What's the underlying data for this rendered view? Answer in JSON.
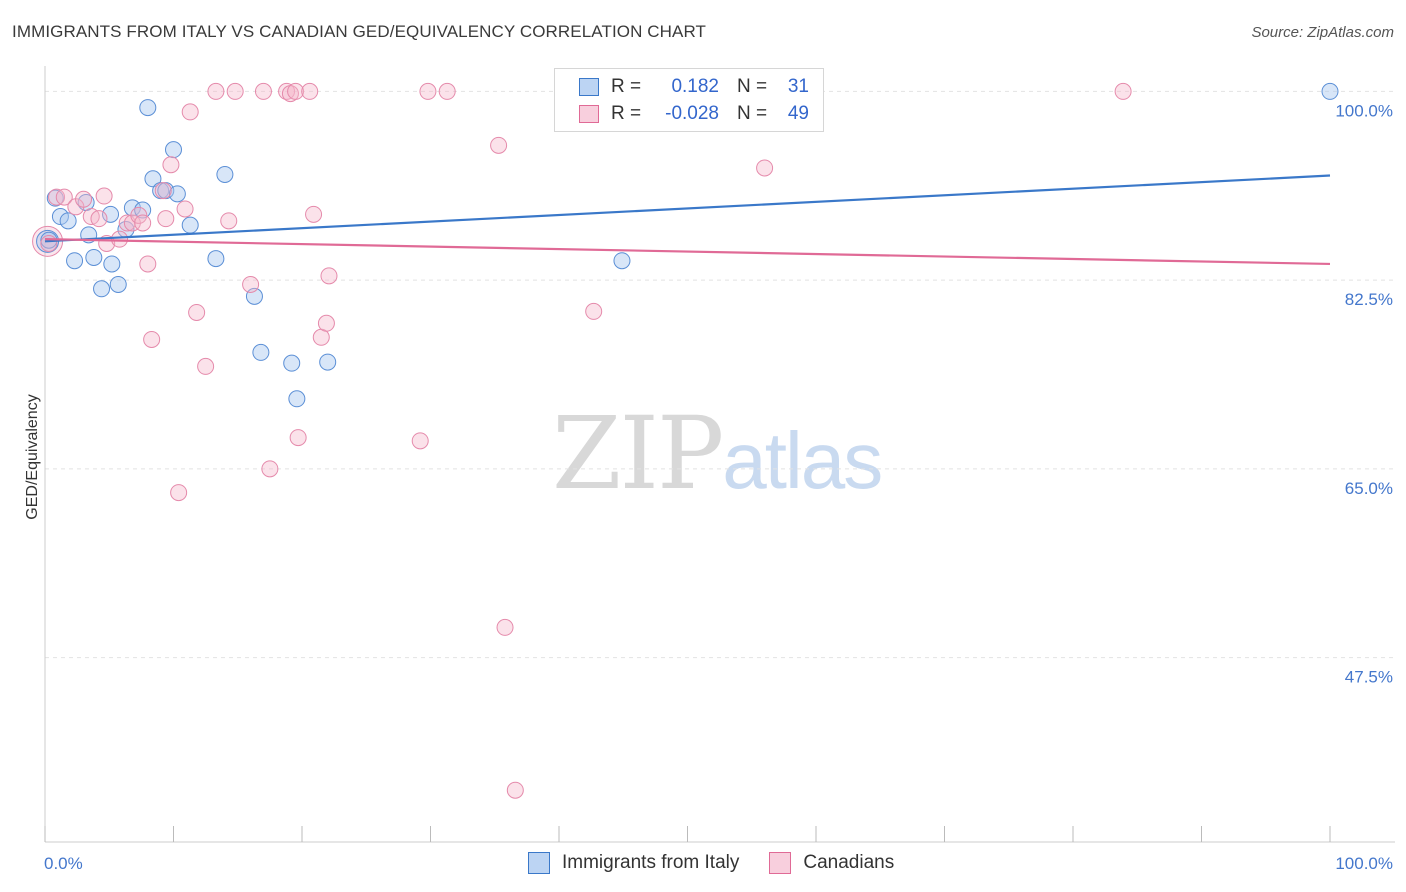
{
  "title": "IMMIGRANTS FROM ITALY VS CANADIAN GED/EQUIVALENCY CORRELATION CHART",
  "source": "Source: ZipAtlas.com",
  "legend": {
    "rows": [
      {
        "r_label": "R =",
        "r_value": "0.182",
        "n_label": "N =",
        "n_value": "31"
      },
      {
        "r_label": "R =",
        "r_value": "-0.028",
        "n_label": "N =",
        "n_value": "49"
      }
    ]
  },
  "watermark": {
    "zip": "ZIP",
    "atlas": "atlas"
  },
  "colors": {
    "blue": "#3a78c9",
    "blue_fill": "#a9c8ef",
    "pink": "#e06a96",
    "pink_fill": "#f4b6cb",
    "axis_text": "#4477cc"
  },
  "chart_data": {
    "type": "scatter",
    "title": "IMMIGRANTS FROM ITALY VS CANADIAN GED/EQUIVALENCY CORRELATION CHART",
    "xlabel": "",
    "ylabel": "GED/Equivalency",
    "xlim": [
      0,
      100
    ],
    "ylim": [
      30.4,
      101.8
    ],
    "x_tick_labels": [
      "0.0%",
      "100.0%"
    ],
    "y_ticks": [
      100.0,
      82.5,
      65.0,
      47.5
    ],
    "y_tick_labels": [
      "100.0%",
      "82.5%",
      "65.0%",
      "47.5%"
    ],
    "series": [
      {
        "name": "Immigrants from Italy",
        "color": "#3a78c9",
        "trend": {
          "x": [
            0,
            100
          ],
          "y": [
            86.1,
            92.2
          ]
        },
        "points": [
          [
            0.3,
            86.2
          ],
          [
            0.8,
            90.1
          ],
          [
            1.2,
            88.4
          ],
          [
            1.8,
            88.0
          ],
          [
            2.3,
            84.3
          ],
          [
            3.2,
            89.7
          ],
          [
            3.4,
            86.7
          ],
          [
            3.8,
            84.6
          ],
          [
            4.4,
            81.7
          ],
          [
            5.1,
            88.6
          ],
          [
            5.2,
            84.0
          ],
          [
            5.7,
            82.1
          ],
          [
            6.3,
            87.2
          ],
          [
            6.8,
            89.2
          ],
          [
            7.6,
            89.0
          ],
          [
            8.0,
            98.5
          ],
          [
            8.4,
            91.9
          ],
          [
            9.0,
            90.8
          ],
          [
            9.4,
            90.8
          ],
          [
            10.0,
            94.6
          ],
          [
            10.3,
            90.5
          ],
          [
            11.3,
            87.6
          ],
          [
            13.3,
            84.5
          ],
          [
            14.0,
            92.3
          ],
          [
            16.3,
            81.0
          ],
          [
            16.8,
            75.8
          ],
          [
            19.2,
            74.8
          ],
          [
            19.6,
            71.5
          ],
          [
            22.0,
            74.9
          ],
          [
            44.9,
            84.3
          ],
          [
            100.0,
            100.0
          ]
        ]
      },
      {
        "name": "Canadians",
        "color": "#e06a96",
        "trend": {
          "x": [
            0,
            100
          ],
          "y": [
            86.3,
            84.0
          ]
        },
        "points": [
          [
            0.3,
            85.9
          ],
          [
            0.9,
            90.2
          ],
          [
            1.5,
            90.2
          ],
          [
            2.4,
            89.3
          ],
          [
            3.0,
            90.0
          ],
          [
            3.6,
            88.4
          ],
          [
            4.2,
            88.2
          ],
          [
            4.6,
            90.3
          ],
          [
            4.8,
            85.9
          ],
          [
            5.8,
            86.3
          ],
          [
            6.4,
            87.8
          ],
          [
            6.8,
            87.8
          ],
          [
            7.3,
            88.5
          ],
          [
            7.6,
            87.8
          ],
          [
            8.0,
            84.0
          ],
          [
            8.3,
            77.0
          ],
          [
            9.2,
            90.8
          ],
          [
            9.4,
            88.2
          ],
          [
            9.8,
            93.2
          ],
          [
            10.4,
            62.8
          ],
          [
            10.9,
            89.1
          ],
          [
            11.3,
            98.1
          ],
          [
            11.8,
            79.5
          ],
          [
            12.5,
            74.5
          ],
          [
            13.3,
            100.0
          ],
          [
            14.3,
            88.0
          ],
          [
            14.8,
            100.0
          ],
          [
            16.0,
            82.1
          ],
          [
            17.0,
            100.0
          ],
          [
            17.5,
            65.0
          ],
          [
            18.8,
            100.0
          ],
          [
            19.1,
            99.8
          ],
          [
            19.5,
            100.0
          ],
          [
            19.7,
            67.9
          ],
          [
            20.6,
            100.0
          ],
          [
            20.9,
            88.6
          ],
          [
            21.5,
            77.2
          ],
          [
            21.9,
            78.5
          ],
          [
            22.1,
            82.9
          ],
          [
            29.2,
            67.6
          ],
          [
            29.8,
            100.0
          ],
          [
            31.3,
            100.0
          ],
          [
            35.3,
            95.0
          ],
          [
            35.8,
            50.3
          ],
          [
            36.6,
            35.2
          ],
          [
            42.7,
            79.6
          ],
          [
            47.7,
            100.0
          ],
          [
            56.0,
            92.9
          ],
          [
            83.9,
            100.0
          ]
        ]
      }
    ]
  },
  "bottom_legend": [
    {
      "label": "Immigrants from Italy"
    },
    {
      "label": "Canadians"
    }
  ]
}
